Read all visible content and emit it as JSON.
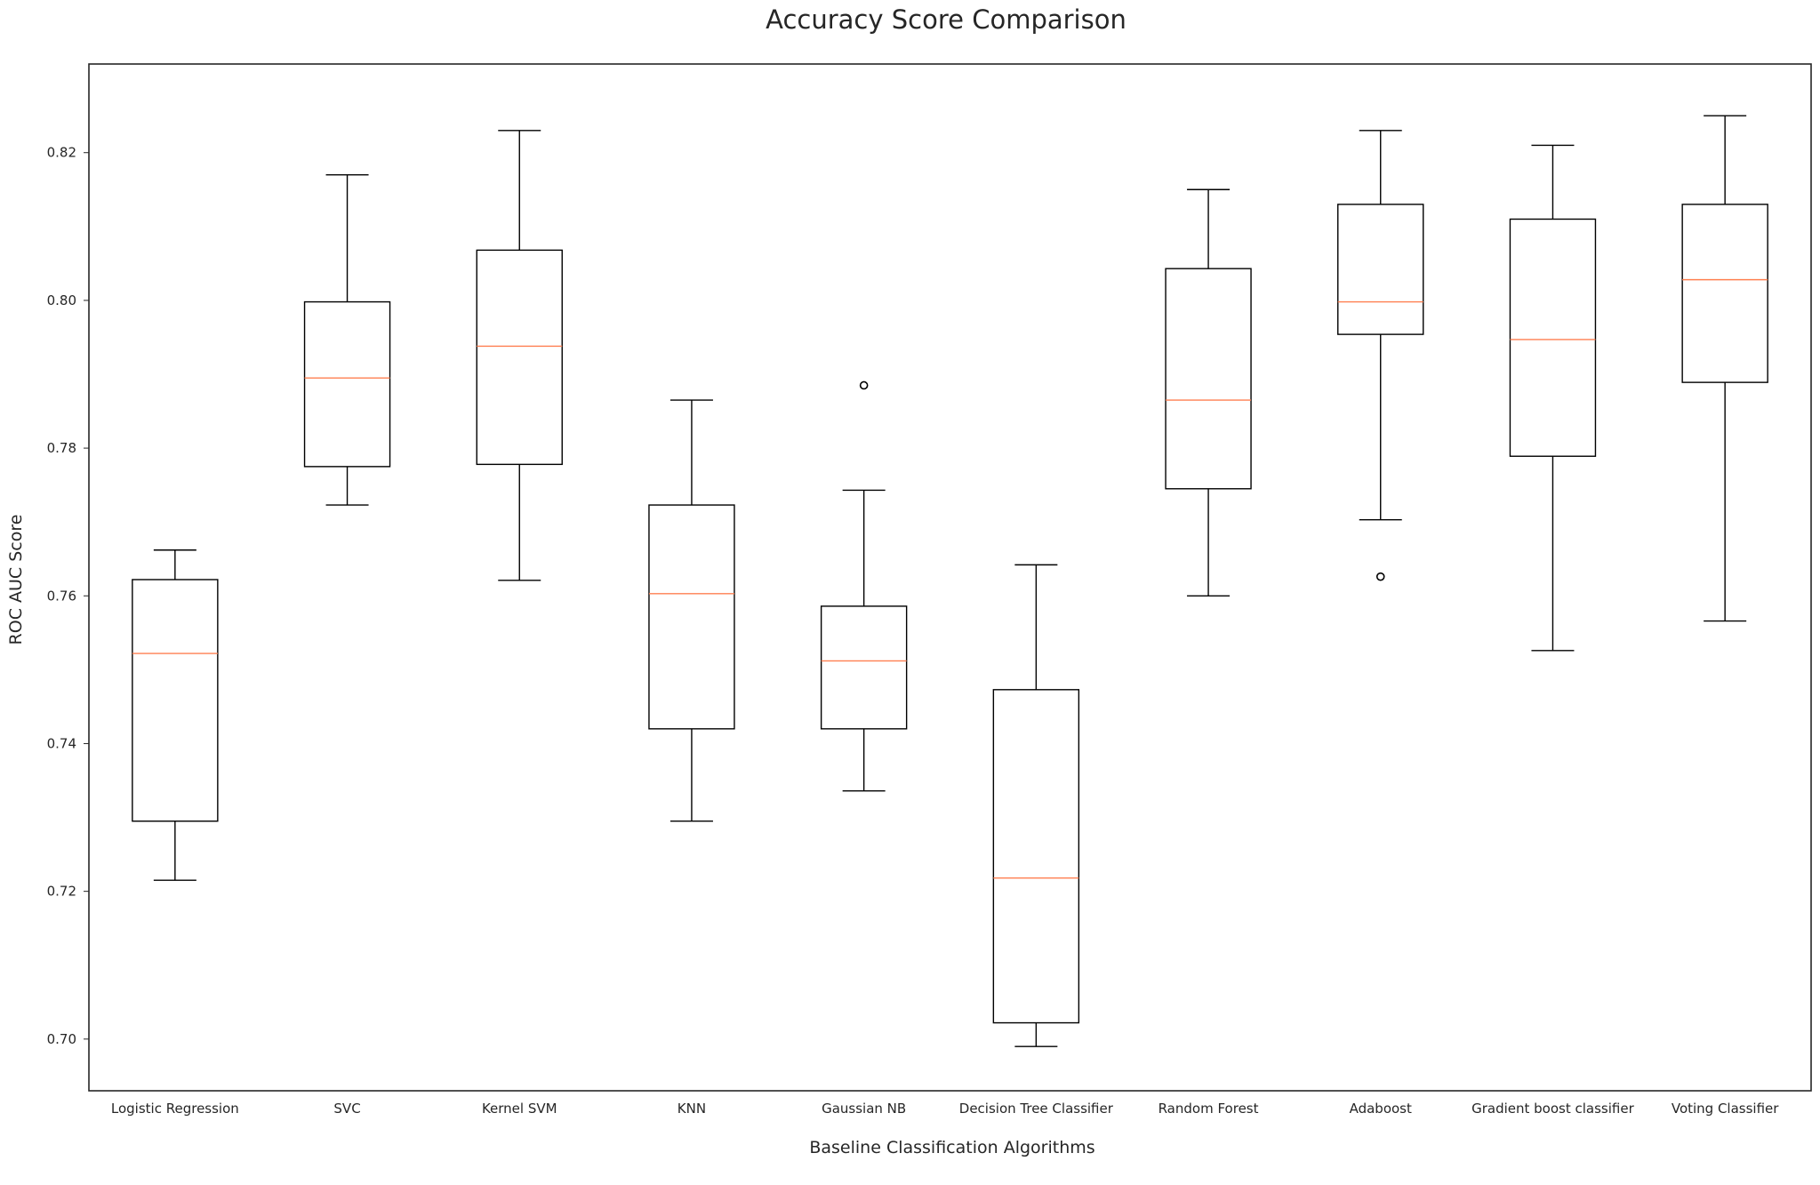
{
  "chart_data": {
    "type": "box",
    "title": "Accuracy Score Comparison",
    "xlabel": "Baseline Classification Algorithms",
    "ylabel": "ROC AUC Score",
    "ylim": [
      0.693,
      0.832
    ],
    "yticks": [
      0.7,
      0.72,
      0.74,
      0.76,
      0.78,
      0.8,
      0.82
    ],
    "ytick_labels": [
      "0.70",
      "0.72",
      "0.74",
      "0.76",
      "0.78",
      "0.80",
      "0.82"
    ],
    "grid": false,
    "colors": {
      "box": "#000000",
      "median": "#ff7f50",
      "text": "#262626"
    },
    "categories": [
      "Logistic Regression",
      "SVC",
      "Kernel SVM",
      "KNN",
      "Gaussian NB",
      "Decision Tree Classifier",
      "Random Forest",
      "Adaboost",
      "Gradient boost classifier",
      "Voting Classifier"
    ],
    "boxes": [
      {
        "whislo": 0.7215,
        "q1": 0.7295,
        "med": 0.7522,
        "q3": 0.7622,
        "whishi": 0.7662,
        "fliers": []
      },
      {
        "whislo": 0.7723,
        "q1": 0.7775,
        "med": 0.7895,
        "q3": 0.7998,
        "whishi": 0.817,
        "fliers": []
      },
      {
        "whislo": 0.7621,
        "q1": 0.7778,
        "med": 0.7938,
        "q3": 0.8068,
        "whishi": 0.823,
        "fliers": []
      },
      {
        "whislo": 0.7295,
        "q1": 0.742,
        "med": 0.7603,
        "q3": 0.7723,
        "whishi": 0.7865,
        "fliers": []
      },
      {
        "whislo": 0.7336,
        "q1": 0.742,
        "med": 0.7512,
        "q3": 0.7586,
        "whishi": 0.7743,
        "fliers": [
          0.7885
        ]
      },
      {
        "whislo": 0.699,
        "q1": 0.7022,
        "med": 0.7218,
        "q3": 0.7473,
        "whishi": 0.7642,
        "fliers": []
      },
      {
        "whislo": 0.76,
        "q1": 0.7745,
        "med": 0.7865,
        "q3": 0.8043,
        "whishi": 0.815,
        "fliers": []
      },
      {
        "whislo": 0.7703,
        "q1": 0.7954,
        "med": 0.7998,
        "q3": 0.813,
        "whishi": 0.823,
        "fliers": [
          0.7626
        ]
      },
      {
        "whislo": 0.7526,
        "q1": 0.7789,
        "med": 0.7947,
        "q3": 0.811,
        "whishi": 0.821,
        "fliers": []
      },
      {
        "whislo": 0.7566,
        "q1": 0.7889,
        "med": 0.8028,
        "q3": 0.813,
        "whishi": 0.825,
        "fliers": []
      }
    ]
  }
}
